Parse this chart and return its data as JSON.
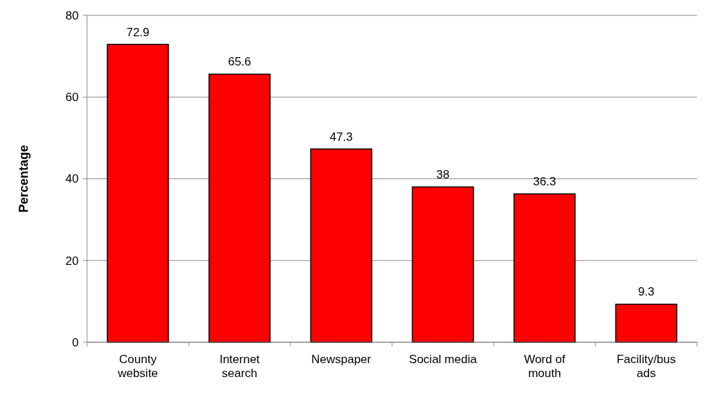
{
  "chart_data": {
    "type": "bar",
    "ylabel": "Percentage",
    "categories": [
      "County website",
      "Internet search",
      "Newspaper",
      "Social media",
      "Word of mouth",
      "Facility/bus ads"
    ],
    "values": [
      72.9,
      65.6,
      47.3,
      38,
      36.3,
      9.3
    ],
    "color": "#ff0000",
    "ylim": [
      0,
      80
    ],
    "yticks": [
      0,
      20,
      40,
      60,
      80
    ],
    "grid": "y",
    "data_labels": true
  }
}
